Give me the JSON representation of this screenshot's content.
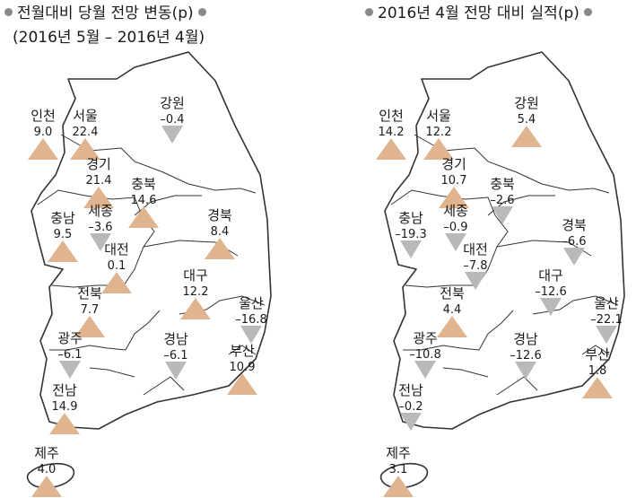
{
  "colors": {
    "increase": "#dfb48e",
    "decrease": "#b9b9b9",
    "dot": "#888888"
  },
  "left": {
    "title": "전월대비 당월 전망 변동(p)",
    "subtitle": "(2016년 5월 – 2016년 4월)",
    "regions": [
      {
        "name": "인천",
        "value": "9.0",
        "direction": "up"
      },
      {
        "name": "서울",
        "value": "22.4",
        "direction": "up"
      },
      {
        "name": "강원",
        "value": "–0.4",
        "direction": "down"
      },
      {
        "name": "경기",
        "value": "21.4",
        "direction": "up"
      },
      {
        "name": "충북",
        "value": "14.6",
        "direction": "up"
      },
      {
        "name": "충남",
        "value": "9.5",
        "direction": "up"
      },
      {
        "name": "세종",
        "value": "–3.6",
        "direction": "down"
      },
      {
        "name": "경북",
        "value": "8.4",
        "direction": "up"
      },
      {
        "name": "대전",
        "value": "0.1",
        "direction": "up"
      },
      {
        "name": "대구",
        "value": "12.2",
        "direction": "up"
      },
      {
        "name": "전북",
        "value": "7.7",
        "direction": "up"
      },
      {
        "name": "울산",
        "value": "–16.8",
        "direction": "down"
      },
      {
        "name": "광주",
        "value": "–6.1",
        "direction": "down"
      },
      {
        "name": "경남",
        "value": "–6.1",
        "direction": "down"
      },
      {
        "name": "부산",
        "value": "10.9",
        "direction": "up"
      },
      {
        "name": "전남",
        "value": "14.9",
        "direction": "up"
      },
      {
        "name": "제주",
        "value": "4.0",
        "direction": "up"
      }
    ]
  },
  "right": {
    "title": "2016년 4월 전망 대비 실적(p)",
    "regions": [
      {
        "name": "인천",
        "value": "14.2",
        "direction": "up"
      },
      {
        "name": "서울",
        "value": "12.2",
        "direction": "up"
      },
      {
        "name": "강원",
        "value": "5.4",
        "direction": "up"
      },
      {
        "name": "경기",
        "value": "10.7",
        "direction": "up"
      },
      {
        "name": "충북",
        "value": "–2.6",
        "direction": "down"
      },
      {
        "name": "충남",
        "value": "–19.3",
        "direction": "down"
      },
      {
        "name": "세종",
        "value": "–0.9",
        "direction": "down"
      },
      {
        "name": "경북",
        "value": "–6.6",
        "direction": "down"
      },
      {
        "name": "대전",
        "value": "–7.8",
        "direction": "down"
      },
      {
        "name": "대구",
        "value": "–12.6",
        "direction": "down"
      },
      {
        "name": "전북",
        "value": "4.4",
        "direction": "up"
      },
      {
        "name": "울산",
        "value": "–22.1",
        "direction": "down"
      },
      {
        "name": "광주",
        "value": "–10.8",
        "direction": "down"
      },
      {
        "name": "경남",
        "value": "–12.6",
        "direction": "down"
      },
      {
        "name": "부산",
        "value": "1.8",
        "direction": "up"
      },
      {
        "name": "전남",
        "value": "–0.2",
        "direction": "down"
      },
      {
        "name": "제주",
        "value": "3.1",
        "direction": "up"
      }
    ]
  }
}
